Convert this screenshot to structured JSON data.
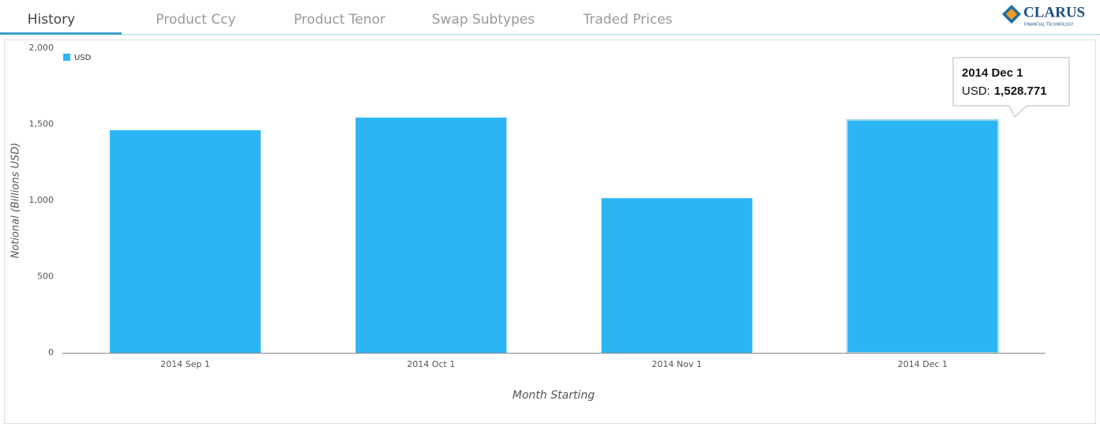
{
  "tabs": [
    "History",
    "Product Ccy",
    "Product Tenor",
    "Swap Subtypes",
    "Traded Prices"
  ],
  "logo": {
    "name": "CLARUS",
    "tagline": "FINANCIAL TECHNOLOGY"
  },
  "chart_data": {
    "type": "bar",
    "categories": [
      "2014 Sep 1",
      "2014 Oct 1",
      "2014 Nov 1",
      "2014 Dec 1"
    ],
    "series": [
      {
        "name": "USD",
        "color": "#2bb5f5",
        "values": [
          1461,
          1544,
          1015,
          1528.771
        ]
      }
    ],
    "ylim": [
      0,
      2000
    ],
    "yticks": [
      0,
      500,
      {
        "value": 1000,
        "label": "1,000"
      },
      {
        "value": 1500,
        "label": "1,500"
      },
      {
        "value": 2000,
        "label": "2,000"
      }
    ],
    "ylabel": "Notional (Billions USD)",
    "xlabel": "Month Starting",
    "legend": "top-left",
    "tooltip": {
      "label": "USD:",
      "value_label": "1,528.771"
    }
  }
}
